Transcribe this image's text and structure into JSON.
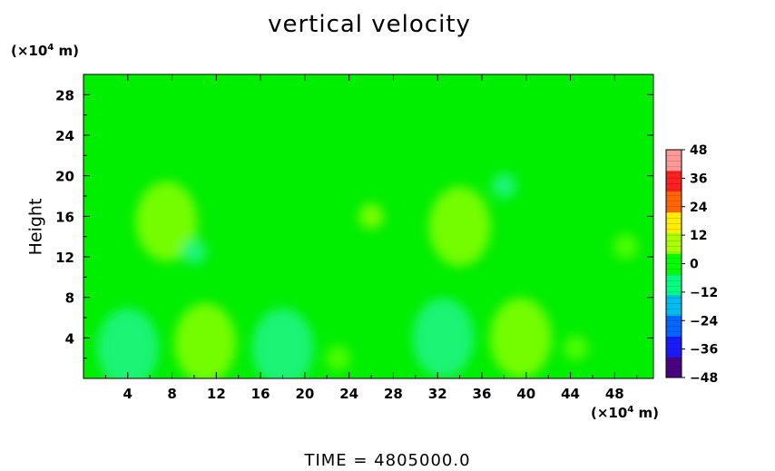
{
  "chart_data": {
    "type": "heatmap",
    "title": "vertical velocity",
    "ylabel": "Height",
    "xlabel": "",
    "y_unit": "(×10",
    "x_unit": "(×10",
    "unit_exp": "4",
    "unit_suffix": " m)",
    "xlim": [
      0,
      51.5
    ],
    "ylim": [
      0,
      30
    ],
    "x_ticks": [
      4,
      8,
      12,
      16,
      20,
      24,
      28,
      32,
      36,
      40,
      44,
      48
    ],
    "y_ticks": [
      4,
      8,
      12,
      16,
      20,
      24,
      28
    ],
    "field": {
      "background": 0,
      "cells": [
        {
          "x": 4.0,
          "y": 3.0,
          "value": -8
        },
        {
          "x": 11.0,
          "y": 3.5,
          "value": 6
        },
        {
          "x": 18.0,
          "y": 3.0,
          "value": -8
        },
        {
          "x": 23.0,
          "y": 2.0,
          "value": 3
        },
        {
          "x": 32.5,
          "y": 4.0,
          "value": -6
        },
        {
          "x": 39.5,
          "y": 4.0,
          "value": 6
        },
        {
          "x": 44.5,
          "y": 3.0,
          "value": 2
        },
        {
          "x": 7.5,
          "y": 15.5,
          "value": 7
        },
        {
          "x": 34.0,
          "y": 15.0,
          "value": 9
        },
        {
          "x": 26.0,
          "y": 16.0,
          "value": 5
        },
        {
          "x": 10.0,
          "y": 12.5,
          "value": -4
        },
        {
          "x": 38.0,
          "y": 19.0,
          "value": -4
        },
        {
          "x": 49.0,
          "y": 13.0,
          "value": 4
        }
      ]
    },
    "colorbar": {
      "ticks": [
        48,
        36,
        24,
        12,
        0,
        -12,
        -24,
        -36,
        -48
      ],
      "min": -48,
      "max": 48,
      "colors": [
        "#4b0082",
        "#1a1aff",
        "#0066ff",
        "#00bbee",
        "#00ff80",
        "#00ff00",
        "#aaff00",
        "#ffee00",
        "#ff6600",
        "#ff2020",
        "#ff9999"
      ]
    },
    "time_label": "TIME  =  4805000.0"
  }
}
